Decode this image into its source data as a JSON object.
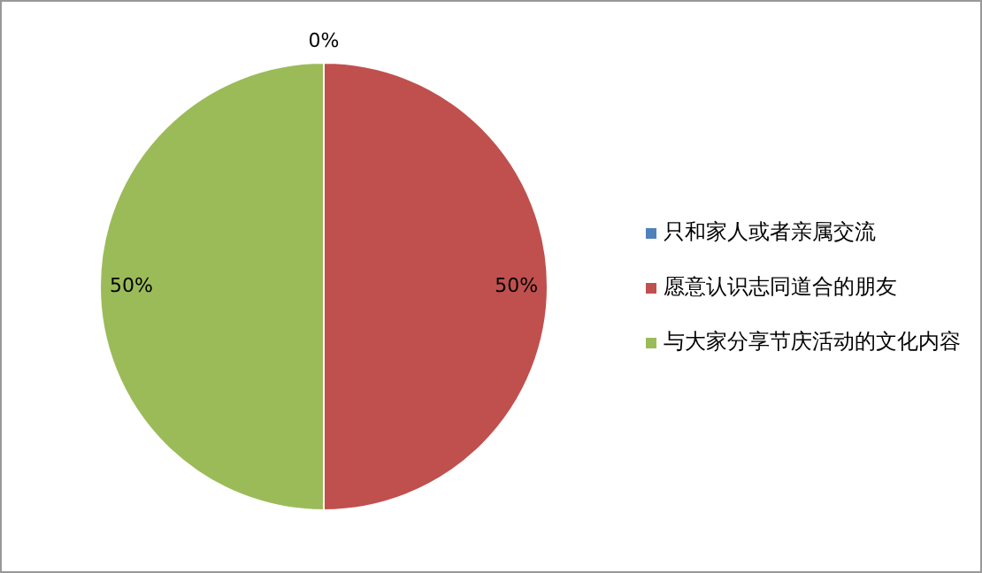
{
  "chart_data": {
    "type": "pie",
    "categories": [
      "只和家人或者亲属交流",
      "愿意认识志同道合的朋友",
      "与大家分享节庆活动的文化内容"
    ],
    "values": [
      0,
      50,
      50
    ],
    "colors": [
      "#4f81bd",
      "#c0504d",
      "#9bbb59"
    ],
    "value_labels": [
      "0%",
      "50%",
      "50%"
    ],
    "legend": "right"
  }
}
